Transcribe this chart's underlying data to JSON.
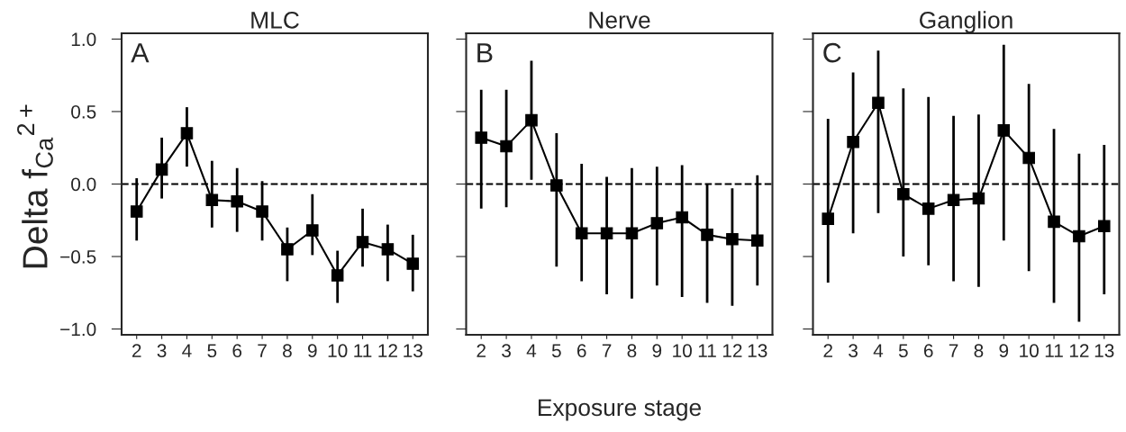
{
  "chart_data": [
    {
      "type": "line",
      "title": "MLC",
      "ylabel": "Delta f$_{Ca}$$^{2+}$",
      "annotations": [
        "A"
      ],
      "categories": [
        "2",
        "3",
        "4",
        "5",
        "6",
        "7",
        "8",
        "9",
        "10",
        "11",
        "12",
        "13"
      ],
      "series": [
        {
          "color": "#000000",
          "values": [
            -0.19,
            0.1,
            0.35,
            -0.11,
            -0.12,
            -0.19,
            -0.45,
            -0.32,
            -0.63,
            -0.4,
            -0.45,
            -0.55
          ],
          "errors": [
            [
              -0.39,
              0.04
            ],
            [
              -0.1,
              0.32
            ],
            [
              0.12,
              0.53
            ],
            [
              -0.3,
              0.16
            ],
            [
              -0.33,
              0.11
            ],
            [
              -0.39,
              0.02
            ],
            [
              -0.67,
              -0.3
            ],
            [
              -0.49,
              -0.07
            ],
            [
              -0.82,
              -0.46
            ],
            [
              -0.57,
              -0.17
            ],
            [
              -0.67,
              -0.28
            ],
            [
              -0.74,
              -0.35
            ]
          ]
        }
      ],
      "ylim": [
        -1.04,
        1.04
      ],
      "yticks": [
        {
          "value": -1.0,
          "label": "−1.0"
        },
        {
          "value": -0.5,
          "label": "−0.5"
        },
        {
          "value": 0.0,
          "label": "0.0"
        },
        {
          "value": 0.5,
          "label": "0.5"
        },
        {
          "value": 1.0,
          "label": "1.0"
        }
      ],
      "ref_lines": [
        {
          "axis": "y",
          "value": 0,
          "line_style": "dashed",
          "color": "#000000"
        }
      ],
      "marker": "square",
      "grid": false,
      "legend": false
    },
    {
      "type": "line",
      "title": "Nerve",
      "xlabel": "Exposure stage",
      "annotations": [
        "B"
      ],
      "categories": [
        "2",
        "3",
        "4",
        "5",
        "6",
        "7",
        "8",
        "9",
        "10",
        "11",
        "12",
        "13"
      ],
      "series": [
        {
          "color": "#000000",
          "values": [
            0.32,
            0.26,
            0.44,
            -0.01,
            -0.34,
            -0.34,
            -0.34,
            -0.27,
            -0.23,
            -0.35,
            -0.38,
            -0.39
          ],
          "errors": [
            [
              -0.17,
              0.65
            ],
            [
              -0.16,
              0.65
            ],
            [
              0.03,
              0.85
            ],
            [
              -0.57,
              0.35
            ],
            [
              -0.67,
              0.14
            ],
            [
              -0.76,
              0.05
            ],
            [
              -0.79,
              0.11
            ],
            [
              -0.7,
              0.12
            ],
            [
              -0.78,
              0.13
            ],
            [
              -0.82,
              0.0
            ],
            [
              -0.84,
              -0.03
            ],
            [
              -0.7,
              0.06
            ]
          ]
        }
      ],
      "ylim": [
        -1.04,
        1.04
      ],
      "yticks": [
        -1.0,
        -0.5,
        0.0,
        0.5,
        1.0
      ],
      "tick_labels": "x",
      "ref_lines": [
        {
          "axis": "y",
          "value": 0,
          "line_style": "dashed",
          "color": "#000000"
        }
      ],
      "marker": "square",
      "grid": false,
      "legend": false
    },
    {
      "type": "line",
      "title": "Ganglion",
      "annotations": [
        "C"
      ],
      "categories": [
        "2",
        "3",
        "4",
        "5",
        "6",
        "7",
        "8",
        "9",
        "10",
        "11",
        "12",
        "13"
      ],
      "series": [
        {
          "color": "#000000",
          "values": [
            -0.24,
            0.29,
            0.56,
            -0.07,
            -0.17,
            -0.11,
            -0.1,
            0.37,
            0.18,
            -0.26,
            -0.36,
            -0.29
          ],
          "errors": [
            [
              -0.68,
              0.45
            ],
            [
              -0.34,
              0.77
            ],
            [
              -0.2,
              0.92
            ],
            [
              -0.5,
              0.66
            ],
            [
              -0.56,
              0.6
            ],
            [
              -0.67,
              0.47
            ],
            [
              -0.71,
              0.48
            ],
            [
              -0.39,
              0.96
            ],
            [
              -0.6,
              0.69
            ],
            [
              -0.82,
              0.38
            ],
            [
              -0.95,
              0.21
            ],
            [
              -0.76,
              0.27
            ]
          ]
        }
      ],
      "ylim": [
        -1.04,
        1.04
      ],
      "yticks": [
        -1.0,
        -0.5,
        0.0,
        0.5,
        1.0
      ],
      "tick_labels": "x",
      "ref_lines": [
        {
          "axis": "y",
          "value": 0,
          "line_style": "dashed",
          "color": "#000000"
        }
      ],
      "marker": "square",
      "grid": false,
      "legend": false
    }
  ]
}
